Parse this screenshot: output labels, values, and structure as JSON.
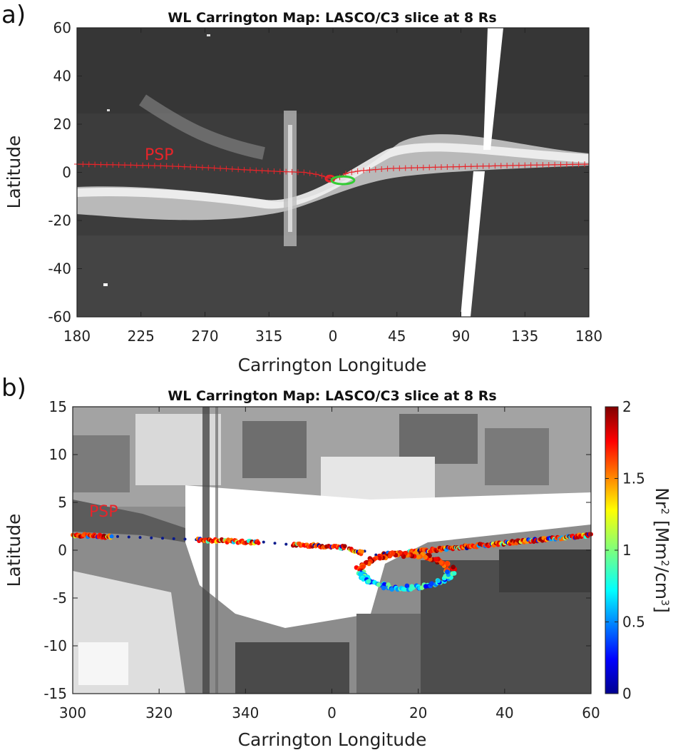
{
  "chart_data": [
    {
      "panel_label": "a)",
      "type": "heatmap",
      "title": "WL Carrington Map: LASCO/C3 slice at 8 Rs",
      "xlabel": "Carrington Longitude",
      "ylabel": "Latitude",
      "x_ticks": [
        "180",
        "225",
        "270",
        "315",
        "0",
        "45",
        "90",
        "135",
        "180"
      ],
      "y_ticks": [
        "60",
        "40",
        "20",
        "0",
        "-20",
        "-40",
        "-60"
      ],
      "xlim_deg_unwrapped": [
        180,
        540
      ],
      "ylim": [
        -60,
        60
      ],
      "colormap": "grayscale",
      "annotation": "PSP",
      "trajectory_color": "#e8242a",
      "perihelion_loop_color": "#33cc33",
      "psp_trajectory": {
        "lon": [
          180,
          210,
          240,
          270,
          300,
          320,
          340,
          350,
          355,
          360,
          365,
          370,
          380,
          400,
          430,
          460,
          490,
          520,
          540
        ],
        "lat": [
          3.4,
          3.1,
          2.7,
          2.0,
          1.0,
          0.4,
          0.0,
          -1.0,
          -2.0,
          -2.8,
          -2.0,
          -0.2,
          0.7,
          1.6,
          2.1,
          2.5,
          2.9,
          3.2,
          3.4
        ]
      },
      "perihelion_loop_green": {
        "center_lon": 7,
        "center_lat": -3.3,
        "half_width_lon": 8,
        "half_height_lat": 1.6
      }
    },
    {
      "panel_label": "b)",
      "type": "heatmap",
      "title": "WL Carrington Map: LASCO/C3 slice at 8 Rs",
      "xlabel": "Carrington Longitude",
      "ylabel": "Latitude",
      "x_ticks": [
        "300",
        "320",
        "340",
        "0",
        "20",
        "40",
        "60"
      ],
      "y_ticks": [
        "15",
        "10",
        "5",
        "0",
        "-5",
        "-10",
        "-15"
      ],
      "xlim_deg_unwrapped": [
        300,
        420
      ],
      "ylim": [
        -15,
        15
      ],
      "colormap": "grayscale",
      "annotation": "PSP",
      "colorbar": {
        "label_main": "Nr",
        "label_unit": "[Mm",
        "label_unit2": "/cm",
        "label_close": "]",
        "sup2": "2",
        "sup3": "3",
        "range": [
          0,
          2
        ],
        "ticks": [
          "2",
          "1.5",
          "1",
          "0.5",
          "0"
        ],
        "colormap": "jet"
      },
      "psp_segments": [
        {
          "lon_start": 300,
          "lon_end": 309,
          "lat_start": 1.6,
          "lat_end": 1.4
        },
        {
          "lon_start": 329,
          "lon_end": 343,
          "lat_start": 1.1,
          "lat_end": 0.8
        },
        {
          "lon_start": 351,
          "lon_end": 363,
          "lat_start": 0.6,
          "lat_end": 0.3
        },
        {
          "lon_start": 364,
          "lon_end": 367,
          "lat_start": 0.2,
          "lat_end": -0.3
        },
        {
          "lon_start": 371,
          "lon_end": 420,
          "lat_start": -0.5,
          "lat_end": 1.6
        }
      ],
      "perihelion_loop": {
        "center_lon": 377,
        "center_lat": -2.2,
        "half_width_lon": 11,
        "half_height_lat": 1.8
      }
    }
  ]
}
